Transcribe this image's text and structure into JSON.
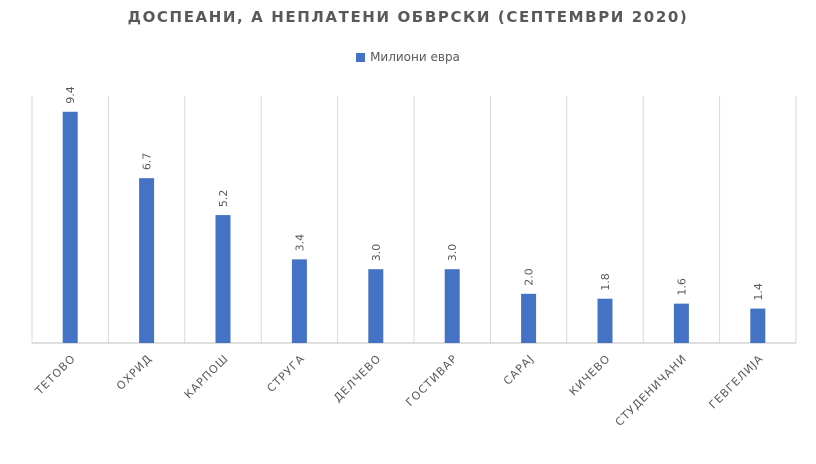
{
  "chart_data": {
    "type": "bar",
    "title": "ДОСПЕАНИ, А НЕПЛАТЕНИ ОБВРСКИ (СЕПТЕМВРИ 2020)",
    "legend_position": "top",
    "grid": "vertical",
    "series": [
      {
        "name": "Милиони евра",
        "color": "#4472C4",
        "values": [
          9.4,
          6.7,
          5.2,
          3.4,
          3.0,
          3.0,
          2.0,
          1.8,
          1.6,
          1.4
        ]
      }
    ],
    "categories": [
      "ТЕТОВО",
      "ОХРИД",
      "КАРПОШ",
      "СТРУГА",
      "ДЕЛЧЕВО",
      "ГОСТИВАР",
      "САРАЈ",
      "КИЧЕВО",
      "СТУДЕНИЧАНИ",
      "ГЕВГЕЛИЈА"
    ],
    "data_labels": [
      "9.4",
      "6.7",
      "5.2",
      "3.4",
      "3.0",
      "3.0",
      "2.0",
      "1.8",
      "1.6",
      "1.4"
    ],
    "ylim": [
      0,
      10
    ],
    "colors": {
      "title": "#595959",
      "axis_text": "#595959",
      "gridline": "#d9d9d9",
      "axis_line": "#bfbfbf"
    }
  }
}
